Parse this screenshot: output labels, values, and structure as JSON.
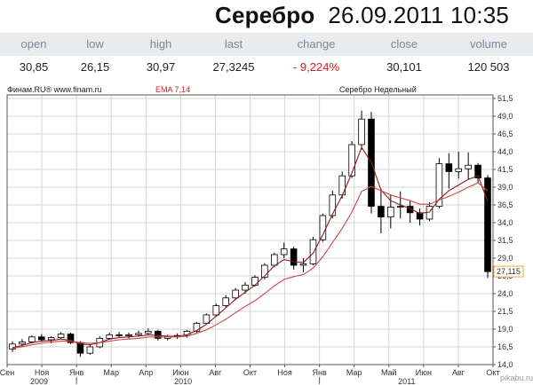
{
  "header": {
    "instrument": "Серебро",
    "datetime": "26.09.2011 10:35"
  },
  "quote_table": {
    "columns": [
      "open",
      "low",
      "high",
      "last",
      "change",
      "close",
      "volume"
    ],
    "values": [
      "30,85",
      "26,15",
      "30,97",
      "27,3245",
      "- 9,224%",
      "30,101",
      "120 503"
    ]
  },
  "chart_meta": {
    "source_label": "Финам.RU® www.finam.ru",
    "indicator_label": "EMA 7,14",
    "chart_title": "Серебро Недельный",
    "last_price_label": "27,115",
    "watermark": "pikabu.ru"
  },
  "colors": {
    "ema_fast": "#8b1a1a",
    "ema_slow": "#d14545",
    "candle_up": "#ffffff",
    "candle_down": "#000000",
    "change_negative": "#d21f1f",
    "last_price_box": "#f4a341",
    "indicator_label": "#cc2222"
  },
  "chart_data": {
    "type": "candlestick",
    "title": "Серебро Недельный",
    "period": "weekly",
    "y_ticks": [
      "51,5",
      "49,0",
      "46,5",
      "44,0",
      "41,5",
      "39,0",
      "36,5",
      "34,0",
      "31,5",
      "29,0",
      "26,5",
      "24,0",
      "21,5",
      "19,0",
      "16,5",
      "14,0"
    ],
    "ylim": [
      14.0,
      51.5
    ],
    "x_ticks": [
      "Сен",
      "Ноя",
      "Янв",
      "Мар",
      "Апр",
      "Июн",
      "Авг",
      "Окт",
      "Ноя",
      "Янв",
      "Мар",
      "Май",
      "Июн",
      "Авг",
      "Окт"
    ],
    "year_labels": [
      "2009",
      "2010",
      "2011"
    ],
    "grid": true,
    "series": [
      {
        "name": "EMA 7",
        "values": [
          16.4,
          16.7,
          17.1,
          17.3,
          17.4,
          17.6,
          17.4,
          16.9,
          16.8,
          17.1,
          17.6,
          17.8,
          17.9,
          18.0,
          18.2,
          18.1,
          18.0,
          18.0,
          18.2,
          18.8,
          19.7,
          20.8,
          22.0,
          23.2,
          24.2,
          25.2,
          26.5,
          27.9,
          28.8,
          28.5,
          28.4,
          29.7,
          32.3,
          35.2,
          37.8,
          41.0,
          44.6,
          42.5,
          38.6,
          37.1,
          36.5,
          36.0,
          35.3,
          35.5,
          37.3,
          38.5,
          39.3,
          40.1,
          40.6,
          37.0
        ]
      },
      {
        "name": "EMA 14",
        "values": [
          16.3,
          16.5,
          16.8,
          17.0,
          17.2,
          17.3,
          17.3,
          17.1,
          17.0,
          17.1,
          17.3,
          17.5,
          17.6,
          17.7,
          17.9,
          17.9,
          17.9,
          17.9,
          18.0,
          18.4,
          18.9,
          19.6,
          20.4,
          21.3,
          22.2,
          23.0,
          24.0,
          25.1,
          26.0,
          26.4,
          26.7,
          27.6,
          29.2,
          31.2,
          33.2,
          35.5,
          38.4,
          39.1,
          38.5,
          37.9,
          37.5,
          37.1,
          36.6,
          36.6,
          37.2,
          37.7,
          38.3,
          39.0,
          39.6,
          38.5
        ]
      }
    ],
    "candles": [
      {
        "o": 16.2,
        "h": 17.3,
        "l": 15.8,
        "c": 16.9
      },
      {
        "o": 16.9,
        "h": 17.6,
        "l": 16.5,
        "c": 17.2
      },
      {
        "o": 17.2,
        "h": 18.1,
        "l": 17.0,
        "c": 17.9
      },
      {
        "o": 17.9,
        "h": 18.3,
        "l": 17.2,
        "c": 17.5
      },
      {
        "o": 17.5,
        "h": 18.0,
        "l": 17.0,
        "c": 17.8
      },
      {
        "o": 17.8,
        "h": 18.6,
        "l": 17.6,
        "c": 18.3
      },
      {
        "o": 18.3,
        "h": 18.5,
        "l": 16.9,
        "c": 17.1
      },
      {
        "o": 17.1,
        "h": 17.3,
        "l": 15.1,
        "c": 15.6
      },
      {
        "o": 15.6,
        "h": 16.9,
        "l": 15.4,
        "c": 16.5
      },
      {
        "o": 16.5,
        "h": 18.0,
        "l": 16.3,
        "c": 17.7
      },
      {
        "o": 17.7,
        "h": 18.5,
        "l": 17.5,
        "c": 18.2
      },
      {
        "o": 18.2,
        "h": 18.6,
        "l": 17.8,
        "c": 18.1
      },
      {
        "o": 18.1,
        "h": 18.5,
        "l": 17.7,
        "c": 18.2
      },
      {
        "o": 18.2,
        "h": 18.8,
        "l": 18.0,
        "c": 18.4
      },
      {
        "o": 18.4,
        "h": 19.1,
        "l": 18.2,
        "c": 18.7
      },
      {
        "o": 18.7,
        "h": 18.9,
        "l": 17.4,
        "c": 17.7
      },
      {
        "o": 17.7,
        "h": 18.2,
        "l": 17.4,
        "c": 18.0
      },
      {
        "o": 18.0,
        "h": 18.4,
        "l": 17.6,
        "c": 18.1
      },
      {
        "o": 18.1,
        "h": 18.9,
        "l": 17.8,
        "c": 18.7
      },
      {
        "o": 18.7,
        "h": 20.0,
        "l": 18.5,
        "c": 19.8
      },
      {
        "o": 19.8,
        "h": 21.2,
        "l": 19.6,
        "c": 21.0
      },
      {
        "o": 21.0,
        "h": 22.6,
        "l": 20.8,
        "c": 22.3
      },
      {
        "o": 22.3,
        "h": 23.8,
        "l": 22.0,
        "c": 23.4
      },
      {
        "o": 23.4,
        "h": 24.8,
        "l": 23.1,
        "c": 24.5
      },
      {
        "o": 24.5,
        "h": 25.6,
        "l": 24.0,
        "c": 25.2
      },
      {
        "o": 25.2,
        "h": 26.6,
        "l": 25.0,
        "c": 26.3
      },
      {
        "o": 26.3,
        "h": 28.3,
        "l": 26.0,
        "c": 28.0
      },
      {
        "o": 28.0,
        "h": 29.8,
        "l": 27.7,
        "c": 29.5
      },
      {
        "o": 29.5,
        "h": 31.2,
        "l": 29.0,
        "c": 30.3
      },
      {
        "o": 30.3,
        "h": 30.6,
        "l": 27.4,
        "c": 28.0
      },
      {
        "o": 28.0,
        "h": 29.0,
        "l": 27.0,
        "c": 28.2
      },
      {
        "o": 28.2,
        "h": 32.0,
        "l": 28.0,
        "c": 31.6
      },
      {
        "o": 31.6,
        "h": 35.3,
        "l": 31.3,
        "c": 35.0
      },
      {
        "o": 35.0,
        "h": 38.5,
        "l": 34.6,
        "c": 37.9
      },
      {
        "o": 37.9,
        "h": 41.2,
        "l": 37.4,
        "c": 40.6
      },
      {
        "o": 40.6,
        "h": 45.5,
        "l": 40.3,
        "c": 45.0
      },
      {
        "o": 45.0,
        "h": 49.8,
        "l": 44.3,
        "c": 48.6
      },
      {
        "o": 48.6,
        "h": 49.6,
        "l": 35.3,
        "c": 36.3
      },
      {
        "o": 36.3,
        "h": 38.8,
        "l": 32.5,
        "c": 34.8
      },
      {
        "o": 34.8,
        "h": 37.9,
        "l": 33.2,
        "c": 36.2
      },
      {
        "o": 36.2,
        "h": 38.4,
        "l": 34.6,
        "c": 36.3
      },
      {
        "o": 36.3,
        "h": 37.1,
        "l": 34.0,
        "c": 35.4
      },
      {
        "o": 35.4,
        "h": 36.0,
        "l": 33.6,
        "c": 34.5
      },
      {
        "o": 34.5,
        "h": 36.9,
        "l": 34.2,
        "c": 36.3
      },
      {
        "o": 36.3,
        "h": 43.1,
        "l": 36.0,
        "c": 42.3
      },
      {
        "o": 42.3,
        "h": 43.8,
        "l": 38.8,
        "c": 41.2
      },
      {
        "o": 41.2,
        "h": 44.0,
        "l": 40.2,
        "c": 41.6
      },
      {
        "o": 41.6,
        "h": 43.9,
        "l": 40.1,
        "c": 42.1
      },
      {
        "o": 42.1,
        "h": 42.4,
        "l": 39.6,
        "c": 40.3
      },
      {
        "o": 40.3,
        "h": 40.7,
        "l": 26.2,
        "c": 27.1
      }
    ]
  }
}
